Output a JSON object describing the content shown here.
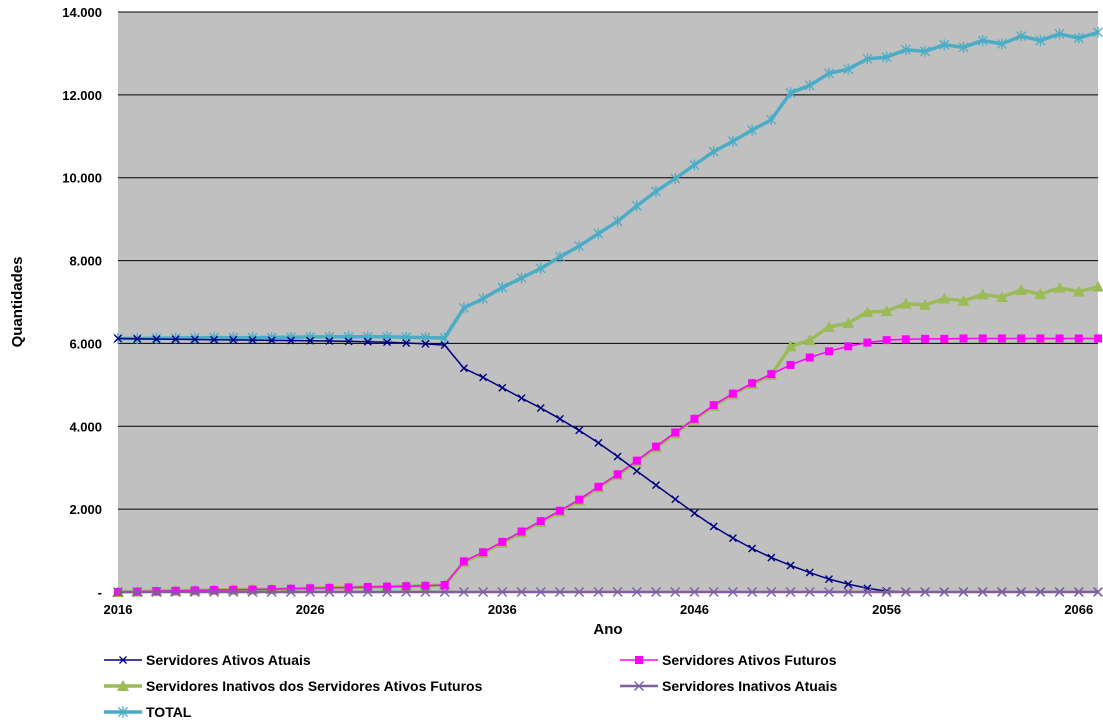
{
  "chart_data": {
    "type": "line",
    "xlabel": "Ano",
    "ylabel": "Quantidades",
    "xlim": [
      2016,
      2067
    ],
    "ylim": [
      0,
      14000
    ],
    "x_ticks": [
      2016,
      2026,
      2036,
      2046,
      2056,
      2066
    ],
    "y_ticks": [
      0,
      2000,
      4000,
      6000,
      8000,
      10000,
      12000,
      14000
    ],
    "y_tick_labels": [
      "-",
      "2.000",
      "4.000",
      "6.000",
      "8.000",
      "10.000",
      "12.000",
      "14.000"
    ],
    "grid": "horizontal",
    "plot_background": "#c0c0c0",
    "legend_position": "bottom",
    "x": [
      2016,
      2017,
      2018,
      2019,
      2020,
      2021,
      2022,
      2023,
      2024,
      2025,
      2026,
      2027,
      2028,
      2029,
      2030,
      2031,
      2032,
      2033,
      2034,
      2035,
      2036,
      2037,
      2038,
      2039,
      2040,
      2041,
      2042,
      2043,
      2044,
      2045,
      2046,
      2047,
      2048,
      2049,
      2050,
      2051,
      2052,
      2053,
      2054,
      2055,
      2056,
      2057,
      2058,
      2059,
      2060,
      2061,
      2062,
      2063,
      2064,
      2065,
      2066,
      2067
    ],
    "series": [
      {
        "name": "Servidores Ativos Atuais",
        "color": "#000080",
        "marker": "x",
        "values": [
          6120,
          6110,
          6105,
          6100,
          6095,
          6090,
          6085,
          6080,
          6075,
          6070,
          6065,
          6060,
          6050,
          6040,
          6030,
          6010,
          5990,
          5960,
          5400,
          5180,
          4930,
          4680,
          4440,
          4180,
          3900,
          3600,
          3270,
          2920,
          2580,
          2240,
          1900,
          1580,
          1300,
          1050,
          830,
          640,
          470,
          310,
          190,
          90,
          20,
          0,
          0,
          0,
          0,
          0,
          0,
          0,
          0,
          0,
          0,
          0
        ]
      },
      {
        "name": "Servidores Ativos Futuros",
        "color": "#ff00ff",
        "marker": "square",
        "values": [
          0,
          10,
          20,
          30,
          40,
          50,
          55,
          60,
          70,
          80,
          90,
          100,
          110,
          120,
          130,
          140,
          150,
          170,
          740,
          960,
          1210,
          1460,
          1710,
          1960,
          2230,
          2540,
          2840,
          3170,
          3510,
          3850,
          4180,
          4510,
          4790,
          5040,
          5260,
          5480,
          5660,
          5810,
          5930,
          6020,
          6080,
          6100,
          6110,
          6110,
          6120,
          6120,
          6120,
          6120,
          6120,
          6120,
          6120,
          6120
        ]
      },
      {
        "name": "Servidores Inativos dos Servidores Ativos Futuros",
        "color": "#9bbb59",
        "marker": "triangle",
        "values": [
          0,
          10,
          20,
          30,
          40,
          50,
          55,
          60,
          70,
          80,
          90,
          100,
          110,
          120,
          130,
          140,
          150,
          170,
          720,
          940,
          1190,
          1440,
          1690,
          1940,
          2210,
          2520,
          2820,
          3150,
          3490,
          3830,
          4160,
          4490,
          4770,
          5020,
          5240,
          5930,
          6080,
          6400,
          6490,
          6760,
          6780,
          6960,
          6930,
          7080,
          7030,
          7180,
          7120,
          7290,
          7190,
          7340,
          7250,
          7370
        ]
      },
      {
        "name": "Servidores Inativos Atuais",
        "color": "#7f5f9f",
        "marker": "x",
        "values": [
          0,
          0,
          0,
          0,
          0,
          0,
          0,
          0,
          0,
          0,
          0,
          0,
          0,
          0,
          0,
          0,
          0,
          0,
          0,
          0,
          0,
          0,
          0,
          0,
          0,
          0,
          0,
          0,
          0,
          0,
          0,
          0,
          0,
          0,
          0,
          0,
          0,
          0,
          0,
          0,
          0,
          0,
          0,
          0,
          0,
          0,
          0,
          0,
          0,
          0,
          0,
          0
        ]
      },
      {
        "name": "TOTAL",
        "color": "#4bacc6",
        "marker": "asterisk",
        "values": [
          6120,
          6120,
          6125,
          6130,
          6135,
          6140,
          6140,
          6140,
          6145,
          6150,
          6155,
          6160,
          6160,
          6160,
          6160,
          6150,
          6140,
          6130,
          6860,
          7080,
          7350,
          7580,
          7810,
          8090,
          8350,
          8650,
          8950,
          9320,
          9670,
          9980,
          10310,
          10630,
          10880,
          11150,
          11400,
          12050,
          12230,
          12520,
          12620,
          12870,
          12910,
          13090,
          13050,
          13210,
          13150,
          13310,
          13230,
          13420,
          13310,
          13470,
          13370,
          13510
        ]
      }
    ]
  }
}
